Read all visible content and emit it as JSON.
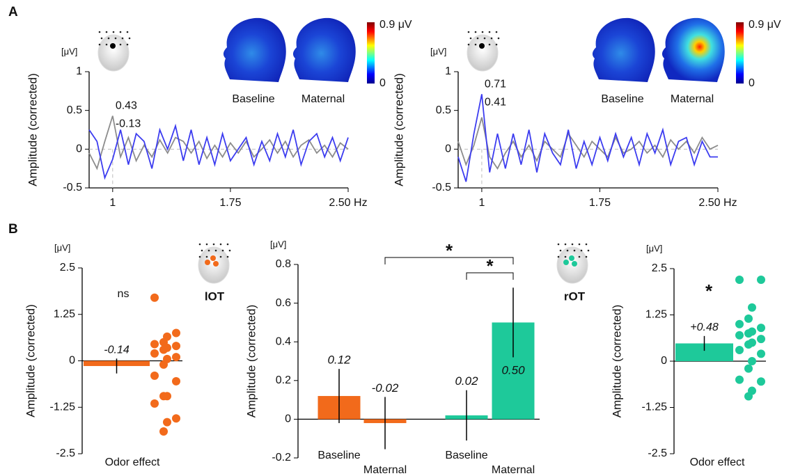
{
  "panels": [
    "A",
    "B"
  ],
  "chart_data": [
    {
      "type": "line",
      "y_unit": "[μV]",
      "y_label": "Amplitude (corrected)",
      "xlim": [
        0.85,
        2.5
      ],
      "xticks": [
        1,
        1.75,
        {
          "value": 2.5,
          "label": "2.50 Hz"
        }
      ],
      "ylim": [
        -0.5,
        1
      ],
      "yticks": [
        -0.5,
        0,
        0.5,
        1
      ],
      "x": [
        0.85,
        0.9,
        0.95,
        1.0,
        1.05,
        1.1,
        1.15,
        1.2,
        1.25,
        1.3,
        1.35,
        1.4,
        1.45,
        1.5,
        1.55,
        1.6,
        1.65,
        1.7,
        1.75,
        1.8,
        1.85,
        1.9,
        1.95,
        2.0,
        2.05,
        2.1,
        2.15,
        2.2,
        2.25,
        2.3,
        2.35,
        2.4,
        2.45,
        2.5
      ],
      "series": [
        {
          "name": "Baseline",
          "color": "#8c8c8c",
          "values": [
            -0.05,
            -0.25,
            0.1,
            0.43,
            -0.1,
            0.15,
            -0.15,
            0.05,
            -0.1,
            0.12,
            -0.05,
            0.15,
            0.1,
            -0.05,
            0.1,
            -0.12,
            0.05,
            -0.1,
            0.08,
            -0.05,
            0.1,
            -0.1,
            0.0,
            0.12,
            -0.05,
            0.1,
            -0.1,
            0.05,
            0.12,
            -0.05,
            0.05,
            -0.1,
            0.08,
            0.0
          ]
        },
        {
          "name": "Maternal",
          "color": "#3c3cf0",
          "values": [
            0.25,
            0.1,
            -0.37,
            -0.13,
            0.25,
            -0.2,
            0.2,
            0.1,
            -0.25,
            0.25,
            0.0,
            0.3,
            -0.15,
            0.25,
            -0.2,
            0.15,
            -0.2,
            0.2,
            -0.15,
            0.0,
            0.15,
            -0.2,
            0.1,
            -0.15,
            0.2,
            -0.1,
            0.25,
            -0.2,
            0.1,
            0.2,
            -0.1,
            0.15,
            -0.15,
            0.15
          ]
        }
      ],
      "annotations": [
        {
          "text": "0.43",
          "series": 0
        },
        {
          "text": "-0.13",
          "series": 1
        }
      ],
      "colorbar": {
        "max": "0.9 μV",
        "min": "0"
      }
    },
    {
      "type": "line",
      "y_unit": "[μV]",
      "y_label": "Amplitude (corrected)",
      "xlim": [
        0.85,
        2.5
      ],
      "xticks": [
        1,
        1.75,
        {
          "value": 2.5,
          "label": "2.50 Hz"
        }
      ],
      "ylim": [
        -0.5,
        1
      ],
      "yticks": [
        -0.5,
        0,
        0.5,
        1
      ],
      "x": [
        0.85,
        0.9,
        0.95,
        1.0,
        1.05,
        1.1,
        1.15,
        1.2,
        1.25,
        1.3,
        1.35,
        1.4,
        1.45,
        1.5,
        1.55,
        1.6,
        1.65,
        1.7,
        1.75,
        1.8,
        1.85,
        1.9,
        1.95,
        2.0,
        2.05,
        2.1,
        2.15,
        2.2,
        2.25,
        2.3,
        2.35,
        2.4,
        2.45,
        2.5
      ],
      "series": [
        {
          "name": "Baseline",
          "color": "#8c8c8c",
          "values": [
            0.1,
            -0.2,
            0.05,
            0.41,
            -0.1,
            -0.25,
            -0.05,
            0.1,
            -0.1,
            0.05,
            -0.15,
            0.1,
            0.0,
            -0.1,
            0.2,
            0.05,
            -0.1,
            0.1,
            0.0,
            -0.1,
            0.15,
            -0.05,
            0.0,
            0.1,
            -0.05,
            0.05,
            -0.1,
            0.12,
            0.0,
            0.1,
            -0.05,
            0.15,
            0.0,
            0.05
          ]
        },
        {
          "name": "Maternal",
          "color": "#3c3cf0",
          "values": [
            -0.1,
            -0.42,
            0.2,
            0.71,
            -0.3,
            0.2,
            -0.25,
            0.2,
            -0.2,
            0.25,
            -0.3,
            0.2,
            -0.05,
            -0.2,
            0.25,
            -0.25,
            0.1,
            -0.2,
            0.15,
            -0.15,
            0.2,
            -0.1,
            0.15,
            -0.2,
            0.2,
            -0.05,
            0.25,
            -0.2,
            0.1,
            0.15,
            -0.2,
            0.1,
            -0.1,
            -0.1
          ]
        }
      ],
      "annotations": [
        {
          "text": "0.71",
          "series": 1
        },
        {
          "text": "0.41",
          "series": 0
        }
      ],
      "colorbar": {
        "max": "0.9 μV",
        "min": "0"
      }
    },
    {
      "type": "bar_scatter",
      "y_unit": "[μV]",
      "y_label": "Amplitude (corrected)",
      "ylim": [
        -2.5,
        2.5
      ],
      "yticks": [
        -2.5,
        -1.25,
        0,
        1.25,
        2.5
      ],
      "categories": [
        "Odor effect"
      ],
      "values": [
        -0.14
      ],
      "errors": [
        0.2
      ],
      "color": "#f26a1b",
      "points": [
        1.7,
        0.75,
        0.65,
        0.5,
        0.45,
        0.4,
        0.35,
        0.3,
        0.2,
        0.1,
        0.05,
        -0.1,
        -0.4,
        -0.55,
        -0.95,
        -0.95,
        -1.15,
        -1.55,
        -1.65,
        -1.9
      ],
      "annotation": "ns",
      "region": "lOT"
    },
    {
      "type": "bar",
      "y_unit": "[μV]",
      "y_label": "Amplitude (corrected)",
      "ylim": [
        -0.2,
        0.8
      ],
      "yticks": [
        -0.2,
        0,
        0.2,
        0.4,
        0.6,
        0.8
      ],
      "categories": [
        "Baseline",
        "Maternal",
        "Baseline",
        "Maternal"
      ],
      "values": [
        0.12,
        -0.02,
        0.02,
        0.5
      ],
      "value_labels": [
        "0.12",
        "-0.02",
        "0.02",
        "0.50"
      ],
      "errors": [
        0.14,
        0.135,
        0.13,
        0.18
      ],
      "colors": [
        "#f26a1b",
        "#f26a1b",
        "#1ec99a",
        "#1ec99a"
      ],
      "significance": [
        {
          "from": 1,
          "to": 3,
          "label": "*"
        },
        {
          "from": 2,
          "to": 3,
          "label": "*"
        }
      ]
    },
    {
      "type": "bar_scatter",
      "y_unit": "[μV]",
      "y_label": "Amplitude (corrected)",
      "ylim": [
        -2.5,
        2.5
      ],
      "yticks": [
        -2.5,
        -1.25,
        0,
        1.25,
        2.5
      ],
      "categories": [
        "Odor effect"
      ],
      "values": [
        0.48
      ],
      "value_labels": [
        "+0.48"
      ],
      "errors": [
        0.2
      ],
      "color": "#1ec99a",
      "points": [
        2.2,
        2.2,
        1.45,
        1.15,
        1.0,
        0.9,
        0.8,
        0.75,
        0.7,
        0.6,
        0.5,
        0.45,
        0.3,
        0.2,
        0.0,
        -0.2,
        -0.5,
        -0.55,
        -0.8,
        -0.95
      ],
      "annotation": "*",
      "region": "rOT"
    }
  ]
}
